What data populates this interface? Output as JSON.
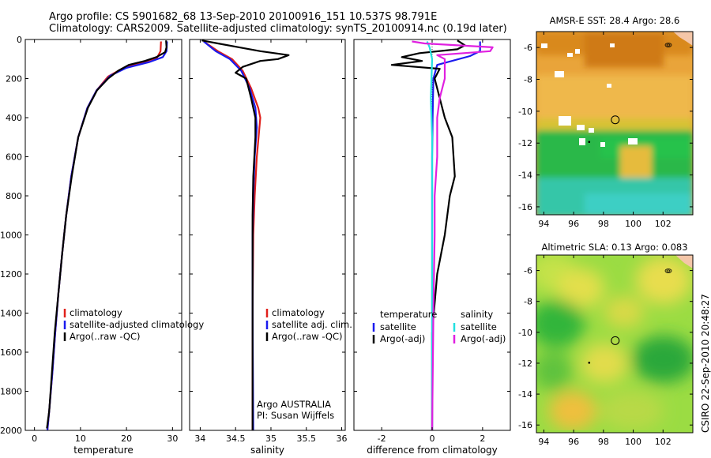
{
  "header": {
    "line1": "Argo profile: CS 5901682_68 13-Sep-2010 20100916_151 10.537S 98.791E",
    "line2": "Climatology: CARS2009. Satellite-adjusted climatology: synTS_20100914.nc (0.19d later)"
  },
  "colors": {
    "climatology": "#e0201b",
    "satellite": "#1a1aee",
    "argo": "#000000",
    "sal_sat": "#22e0e0",
    "sal_argo": "#e020e0"
  },
  "credit": "CSIRO 22-Sep-2010 20:48:27",
  "chart_data": [
    {
      "type": "line",
      "name": "temperature-profile",
      "xlabel": "temperature",
      "xlim": [
        -2,
        32
      ],
      "ylim": [
        2000,
        0
      ],
      "xticks": [
        0,
        10,
        20,
        30
      ],
      "yticks": [
        0,
        200,
        400,
        600,
        800,
        1000,
        1200,
        1400,
        1600,
        1800,
        2000
      ],
      "legend": [
        "climatology",
        "satellite-adjusted climatology",
        "Argo(..raw -QC)"
      ],
      "series": [
        {
          "name": "climatology",
          "color": "#e0201b",
          "points": [
            [
              27.5,
              10
            ],
            [
              27.4,
              60
            ],
            [
              26.6,
              95
            ],
            [
              23,
              120
            ],
            [
              19,
              150
            ],
            [
              16,
              190
            ],
            [
              13.5,
              260
            ],
            [
              11.5,
              350
            ],
            [
              9.5,
              500
            ],
            [
              8,
              700
            ],
            [
              6.9,
              900
            ],
            [
              6,
              1100
            ],
            [
              5.2,
              1300
            ],
            [
              4.5,
              1500
            ],
            [
              3.9,
              1700
            ],
            [
              3.2,
              1900
            ],
            [
              2.8,
              2000
            ]
          ]
        },
        {
          "name": "satellite-adjusted climatology",
          "color": "#1a1aee",
          "points": [
            [
              28.8,
              10
            ],
            [
              28.7,
              60
            ],
            [
              27.9,
              90
            ],
            [
              25,
              115
            ],
            [
              20,
              145
            ],
            [
              16.5,
              185
            ],
            [
              13.5,
              260
            ],
            [
              11.5,
              350
            ],
            [
              9.5,
              500
            ],
            [
              8,
              700
            ],
            [
              6.9,
              900
            ],
            [
              6,
              1100
            ],
            [
              5.2,
              1300
            ],
            [
              4.5,
              1500
            ],
            [
              3.9,
              1700
            ],
            [
              3.2,
              1900
            ],
            [
              2.8,
              2000
            ]
          ]
        },
        {
          "name": "Argo(..raw -QC)",
          "color": "#000000",
          "points": [
            [
              28.6,
              5
            ],
            [
              28.7,
              40
            ],
            [
              28.4,
              65
            ],
            [
              26.5,
              90
            ],
            [
              24,
              110
            ],
            [
              20.5,
              130
            ],
            [
              18.2,
              160
            ],
            [
              16,
              200
            ],
            [
              13.6,
              260
            ],
            [
              11.6,
              350
            ],
            [
              9.5,
              500
            ],
            [
              8.1,
              700
            ],
            [
              6.9,
              900
            ],
            [
              6,
              1100
            ],
            [
              5.2,
              1300
            ],
            [
              4.4,
              1500
            ],
            [
              3.8,
              1700
            ],
            [
              3.2,
              1900
            ],
            [
              2.7,
              1990
            ]
          ]
        }
      ]
    },
    {
      "type": "line",
      "name": "salinity-profile",
      "xlabel": "salinity",
      "xlim": [
        33.85,
        36.05
      ],
      "ylim": [
        2000,
        0
      ],
      "xticks": [
        34,
        34.5,
        35,
        35.5,
        36
      ],
      "legend": [
        "climatology",
        "satellite adj. clim.",
        "Argo(..raw -QC)"
      ],
      "annotation": [
        "Argo AUSTRALIA",
        "PI: Susan Wijffels"
      ],
      "series": [
        {
          "name": "climatology",
          "color": "#e0201b",
          "points": [
            [
              34.05,
              10
            ],
            [
              34.25,
              60
            ],
            [
              34.45,
              100
            ],
            [
              34.6,
              160
            ],
            [
              34.72,
              250
            ],
            [
              34.82,
              350
            ],
            [
              34.85,
              400
            ],
            [
              34.8,
              600
            ],
            [
              34.77,
              800
            ],
            [
              34.75,
              1000
            ],
            [
              34.74,
              1400
            ],
            [
              34.74,
              2000
            ]
          ]
        },
        {
          "name": "satellite adj. clim.",
          "color": "#1a1aee",
          "points": [
            [
              34.05,
              10
            ],
            [
              34.22,
              60
            ],
            [
              34.42,
              100
            ],
            [
              34.58,
              160
            ],
            [
              34.7,
              250
            ],
            [
              34.78,
              350
            ],
            [
              34.8,
              450
            ],
            [
              34.77,
              600
            ],
            [
              34.75,
              800
            ],
            [
              34.74,
              1000
            ],
            [
              34.74,
              1400
            ],
            [
              34.75,
              2000
            ]
          ]
        },
        {
          "name": "Argo(..raw -QC)",
          "color": "#000000",
          "points": [
            [
              34.02,
              5
            ],
            [
              34.25,
              20
            ],
            [
              34.55,
              40
            ],
            [
              34.85,
              60
            ],
            [
              35.25,
              80
            ],
            [
              35.1,
              100
            ],
            [
              34.85,
              110
            ],
            [
              34.6,
              140
            ],
            [
              34.5,
              170
            ],
            [
              34.65,
              200
            ],
            [
              34.72,
              300
            ],
            [
              34.78,
              400
            ],
            [
              34.78,
              500
            ],
            [
              34.75,
              700
            ],
            [
              34.74,
              900
            ],
            [
              34.74,
              1200
            ],
            [
              34.74,
              2000
            ]
          ]
        }
      ]
    },
    {
      "type": "line",
      "name": "difference-profile",
      "xlabel": "difference from climatology",
      "xlim": [
        -3.1,
        3.1
      ],
      "ylim": [
        2000,
        0
      ],
      "xticks": [
        -2,
        0,
        2
      ],
      "legend_groups": [
        {
          "header": "temperature",
          "items": [
            "satellite",
            "Argo(-adj)"
          ]
        },
        {
          "header": "salinity",
          "items": [
            "satellite",
            "Argo(-adj)"
          ]
        }
      ],
      "series": [
        {
          "name": "temperature satellite",
          "color": "#1a1aee",
          "points": [
            [
              1.9,
              10
            ],
            [
              1.9,
              60
            ],
            [
              1.5,
              85
            ],
            [
              0.2,
              130
            ],
            [
              0.05,
              200
            ],
            [
              0.02,
              400
            ],
            [
              0,
              600
            ],
            [
              0,
              1000
            ],
            [
              0,
              2000
            ]
          ]
        },
        {
          "name": "temperature Argo(-adj)",
          "color": "#000000",
          "points": [
            [
              1.0,
              5
            ],
            [
              1.3,
              30
            ],
            [
              1.0,
              50
            ],
            [
              -0.5,
              70
            ],
            [
              -1.2,
              90
            ],
            [
              -0.4,
              110
            ],
            [
              -1.6,
              130
            ],
            [
              0.3,
              150
            ],
            [
              0.1,
              200
            ],
            [
              0.2,
              250
            ],
            [
              0.5,
              400
            ],
            [
              0.8,
              500
            ],
            [
              0.9,
              700
            ],
            [
              0.7,
              800
            ],
            [
              0.5,
              1000
            ],
            [
              0.2,
              1200
            ],
            [
              0,
              1500
            ],
            [
              0,
              2000
            ]
          ]
        },
        {
          "name": "salinity satellite",
          "color": "#22e0e0",
          "points": [
            [
              -0.2,
              10
            ],
            [
              -0.1,
              40
            ],
            [
              0,
              100
            ],
            [
              -0.05,
              300
            ],
            [
              0,
              500
            ],
            [
              0,
              800
            ],
            [
              0,
              2000
            ]
          ]
        },
        {
          "name": "salinity Argo(-adj)",
          "color": "#e020e0",
          "points": [
            [
              -0.8,
              10
            ],
            [
              -0.3,
              20
            ],
            [
              2.4,
              40
            ],
            [
              2.3,
              60
            ],
            [
              0.2,
              80
            ],
            [
              0.5,
              100
            ],
            [
              0.5,
              200
            ],
            [
              0.3,
              300
            ],
            [
              0.2,
              400
            ],
            [
              0.2,
              600
            ],
            [
              0.1,
              800
            ],
            [
              0.1,
              1000
            ],
            [
              0.05,
              1400
            ],
            [
              0,
              2000
            ]
          ]
        }
      ]
    },
    {
      "type": "heatmap",
      "name": "sst-map",
      "title": "AMSR-E SST: 28.4 Argo: 28.6",
      "xlim": [
        93.5,
        104
      ],
      "ylim": [
        -16.5,
        -5
      ],
      "xticks": [
        94,
        96,
        98,
        100,
        102
      ],
      "yticks": [
        -6,
        -8,
        -10,
        -12,
        -14,
        -16
      ],
      "float_position": [
        98.791,
        -10.537
      ]
    },
    {
      "type": "heatmap",
      "name": "sla-map",
      "title": "Altimetric SLA: 0.13 Argo: 0.083",
      "xlim": [
        93.5,
        104
      ],
      "ylim": [
        -16.5,
        -5
      ],
      "xticks": [
        94,
        96,
        98,
        100,
        102
      ],
      "yticks": [
        -6,
        -8,
        -10,
        -12,
        -14,
        -16
      ],
      "float_position": [
        98.791,
        -10.537
      ]
    }
  ]
}
